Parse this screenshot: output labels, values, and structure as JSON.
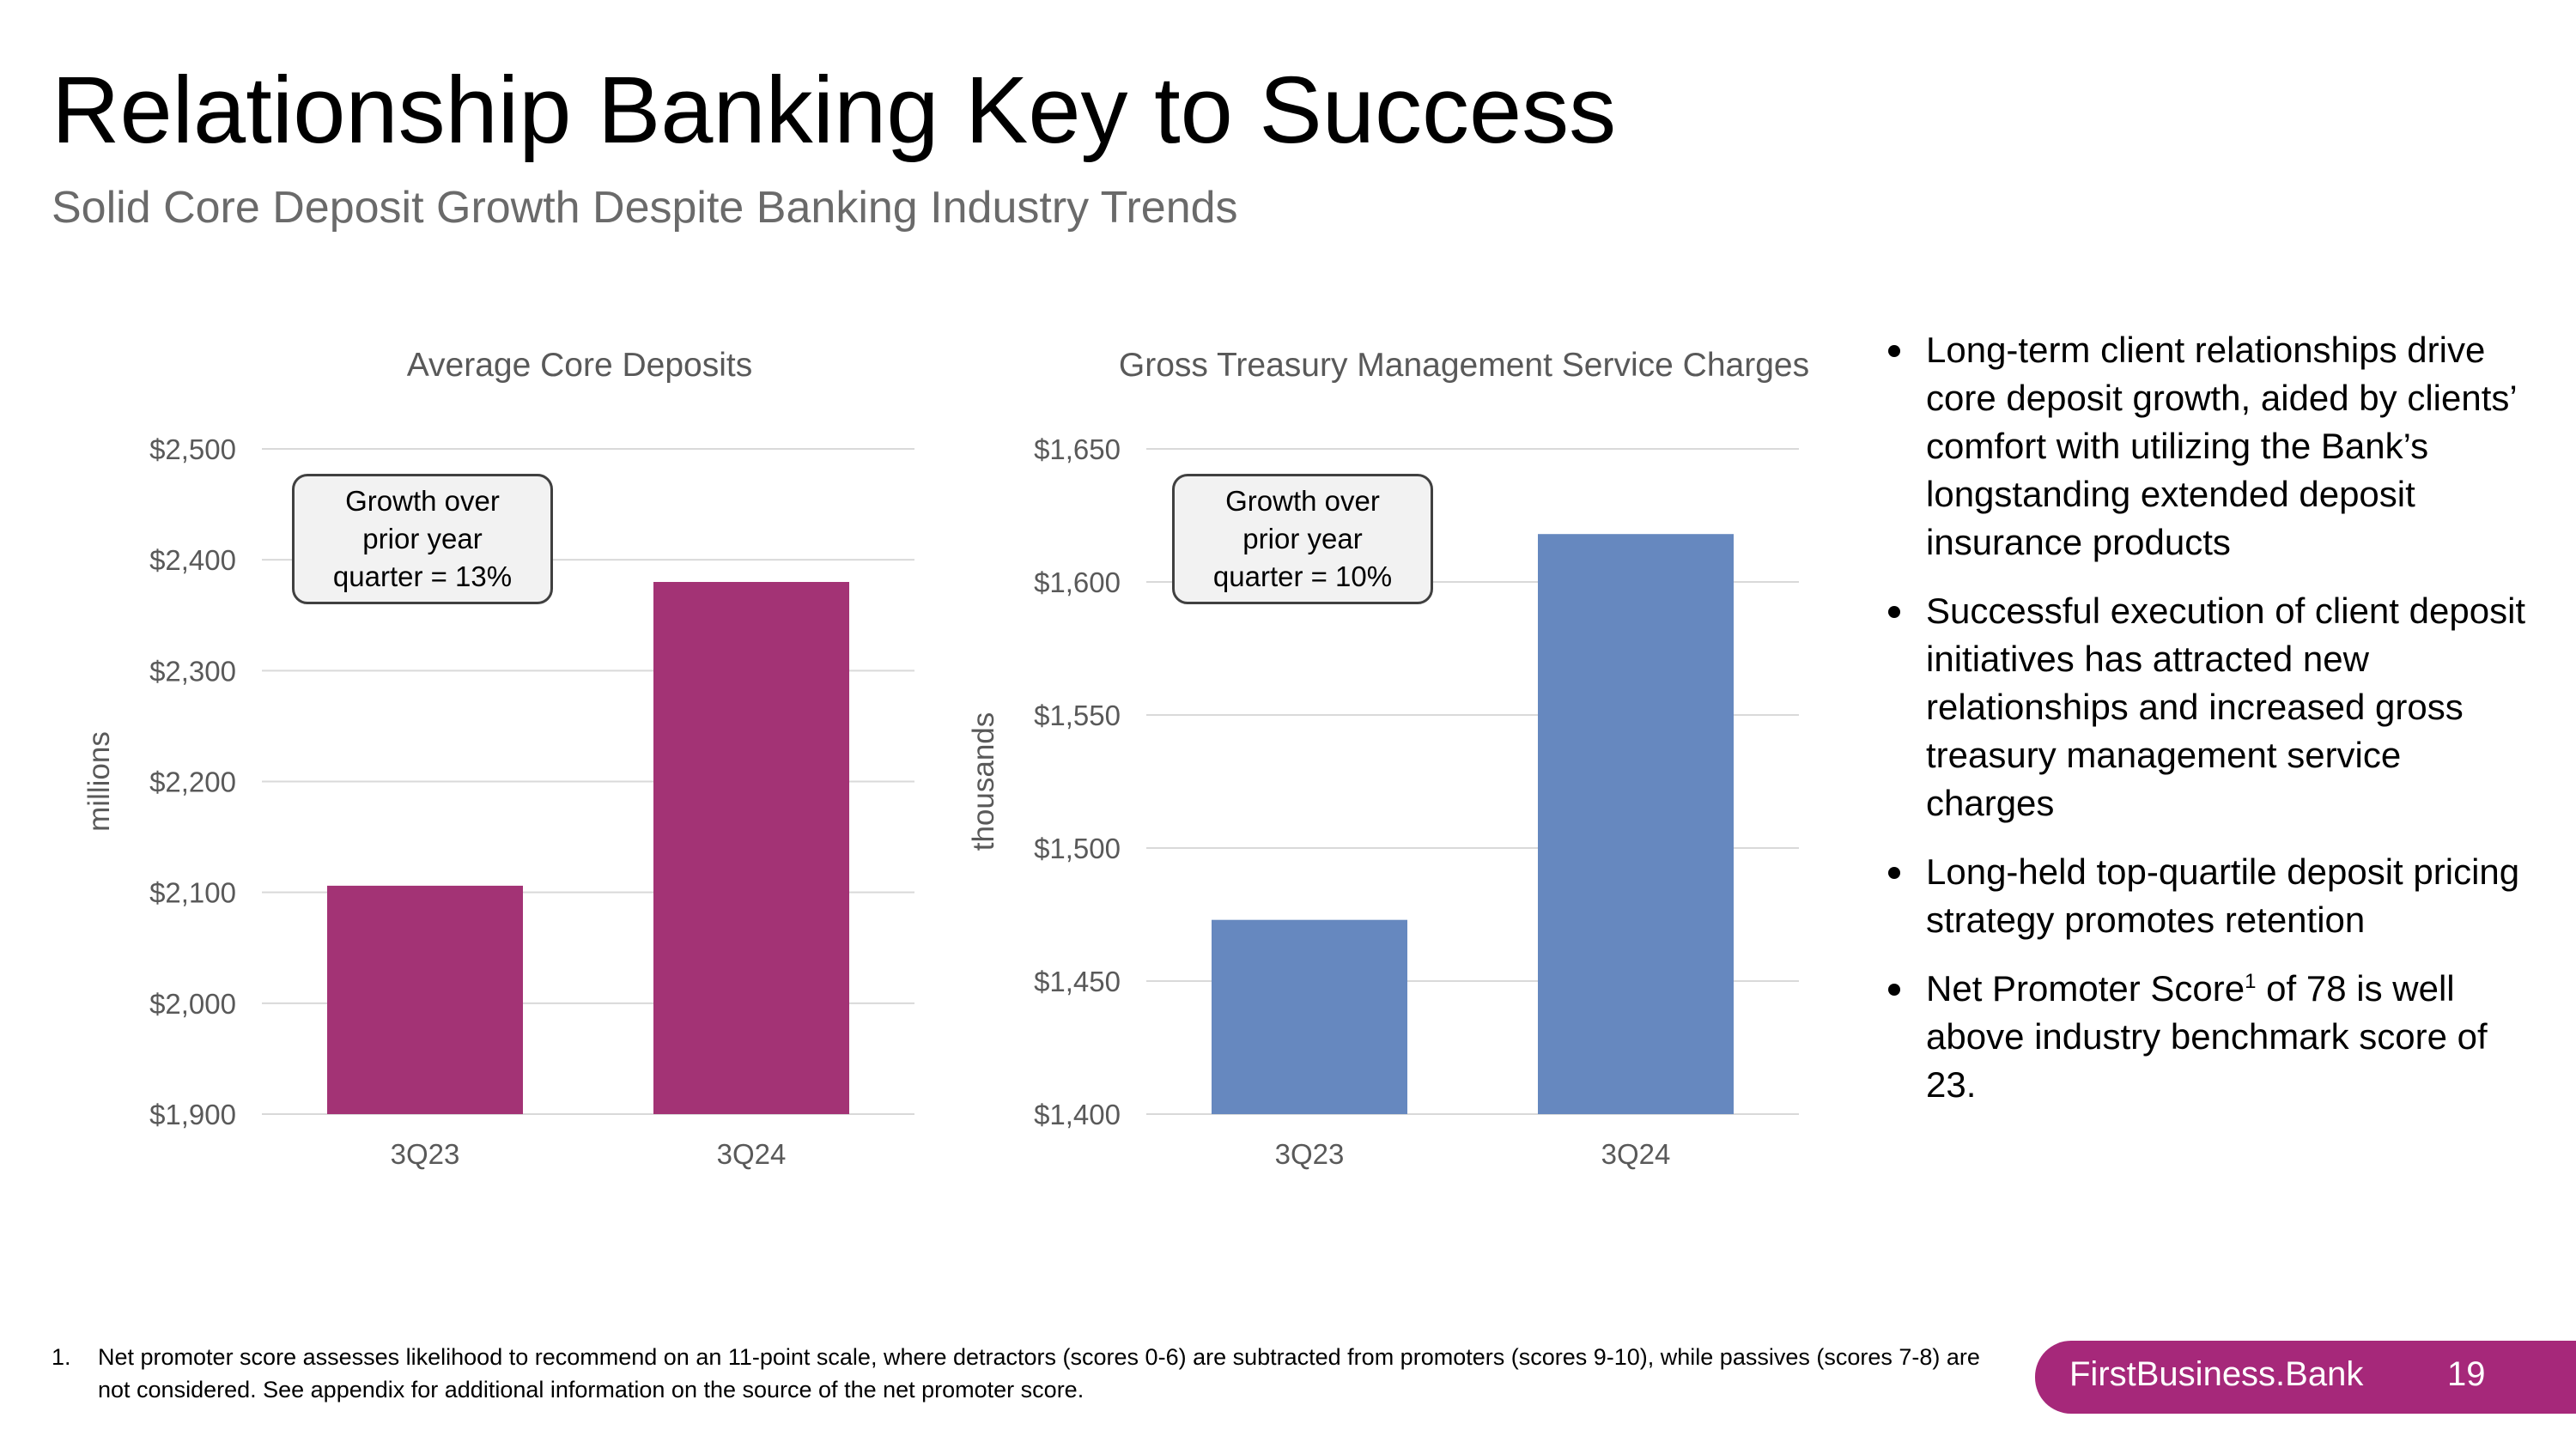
{
  "title": "Relationship Banking Key to Success",
  "subtitle": "Solid Core Deposit Growth Despite Banking Industry Trends",
  "colors": {
    "deposits_bar": "#a33375",
    "treasury_bar": "#6688bf",
    "brand": "#a6287a"
  },
  "chart_data": [
    {
      "type": "bar",
      "title": "Average Core Deposits",
      "ylabel": "millions",
      "categories": [
        "3Q23",
        "3Q24"
      ],
      "values": [
        2106,
        2380
      ],
      "ylim": [
        1900,
        2500
      ],
      "yticks": [
        "$1,900",
        "$2,000",
        "$2,100",
        "$2,200",
        "$2,300",
        "$2,400",
        "$2,500"
      ],
      "grid": true,
      "color": "#a33375",
      "callout": [
        "Growth over",
        "prior year",
        "quarter = 13%"
      ]
    },
    {
      "type": "bar",
      "title": "Gross Treasury Management Service Charges",
      "ylabel": "thousands",
      "categories": [
        "3Q23",
        "3Q24"
      ],
      "values": [
        1473,
        1618
      ],
      "ylim": [
        1400,
        1650
      ],
      "yticks": [
        "$1,400",
        "$1,450",
        "$1,500",
        "$1,550",
        "$1,600",
        "$1,650"
      ],
      "grid": true,
      "color": "#6688bf",
      "callout": [
        "Growth over",
        "prior year",
        "quarter = 10%"
      ]
    }
  ],
  "bullets": [
    {
      "text": "Long-term client relationships drive core deposit growth, aided by clients’ comfort with utilizing the Bank’s longstanding extended deposit insurance products"
    },
    {
      "text": "Successful execution of client deposit initiatives has attracted new relationships and increased gross treasury management service charges"
    },
    {
      "text": "Long-held top-quartile deposit pricing strategy promotes retention"
    },
    {
      "pre": "Net Promoter Score",
      "sup": "1",
      "post": " of 78 is well above industry benchmark score of 23."
    }
  ],
  "footnote": {
    "number": "1.",
    "text": "Net promoter score assesses likelihood to recommend on an 11-point scale, where detractors (scores 0-6) are subtracted from promoters (scores 9-10), while passives (scores 7-8) are not considered. See appendix for additional information on the source of the net promoter score."
  },
  "footer": {
    "brand": "FirstBusiness.Bank",
    "page": "19"
  }
}
